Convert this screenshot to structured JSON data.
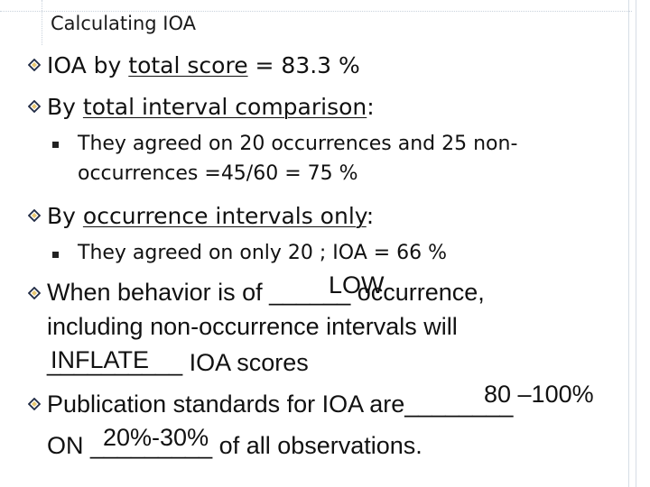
{
  "slide": {
    "title": "Calculating IOA",
    "bullets": [
      {
        "pre": "IOA by ",
        "underlined": "total score",
        "post": " = 83.3 %"
      },
      {
        "pre": "By ",
        "underlined": "total interval comparison",
        "post": ":"
      },
      {
        "sub_line1": "They agreed on 20 occurrences and 25 non-",
        "sub_line2": "occurrences  =45/60 =  75 %"
      },
      {
        "pre": "By ",
        "underlined": "occurrence intervals only",
        "post": ":"
      },
      {
        "sub_line1": "They agreed on only 20 ;   IOA = 66 %"
      },
      {
        "line1": "When behavior is of ______ occurrence,",
        "line2": "including non-occurrence intervals will",
        "line3_blank": "__________",
        "line3_post": "  IOA scores",
        "answer1": "LOW",
        "answer2": "INFLATE"
      },
      {
        "line1": "Publication standards for IOA are________",
        "line2_pre": "ON ",
        "line2_blank": "_________",
        "line2_post": " of all observations.",
        "answer1": "80 –100%",
        "answer2": "20%-30%"
      }
    ]
  },
  "icons": {
    "main_bullet": "diamond-outline-icon",
    "sub_bullet": "square-bullet-icon"
  },
  "colors": {
    "diamond_dark": "#1f2a44",
    "diamond_light": "#e8c872"
  }
}
